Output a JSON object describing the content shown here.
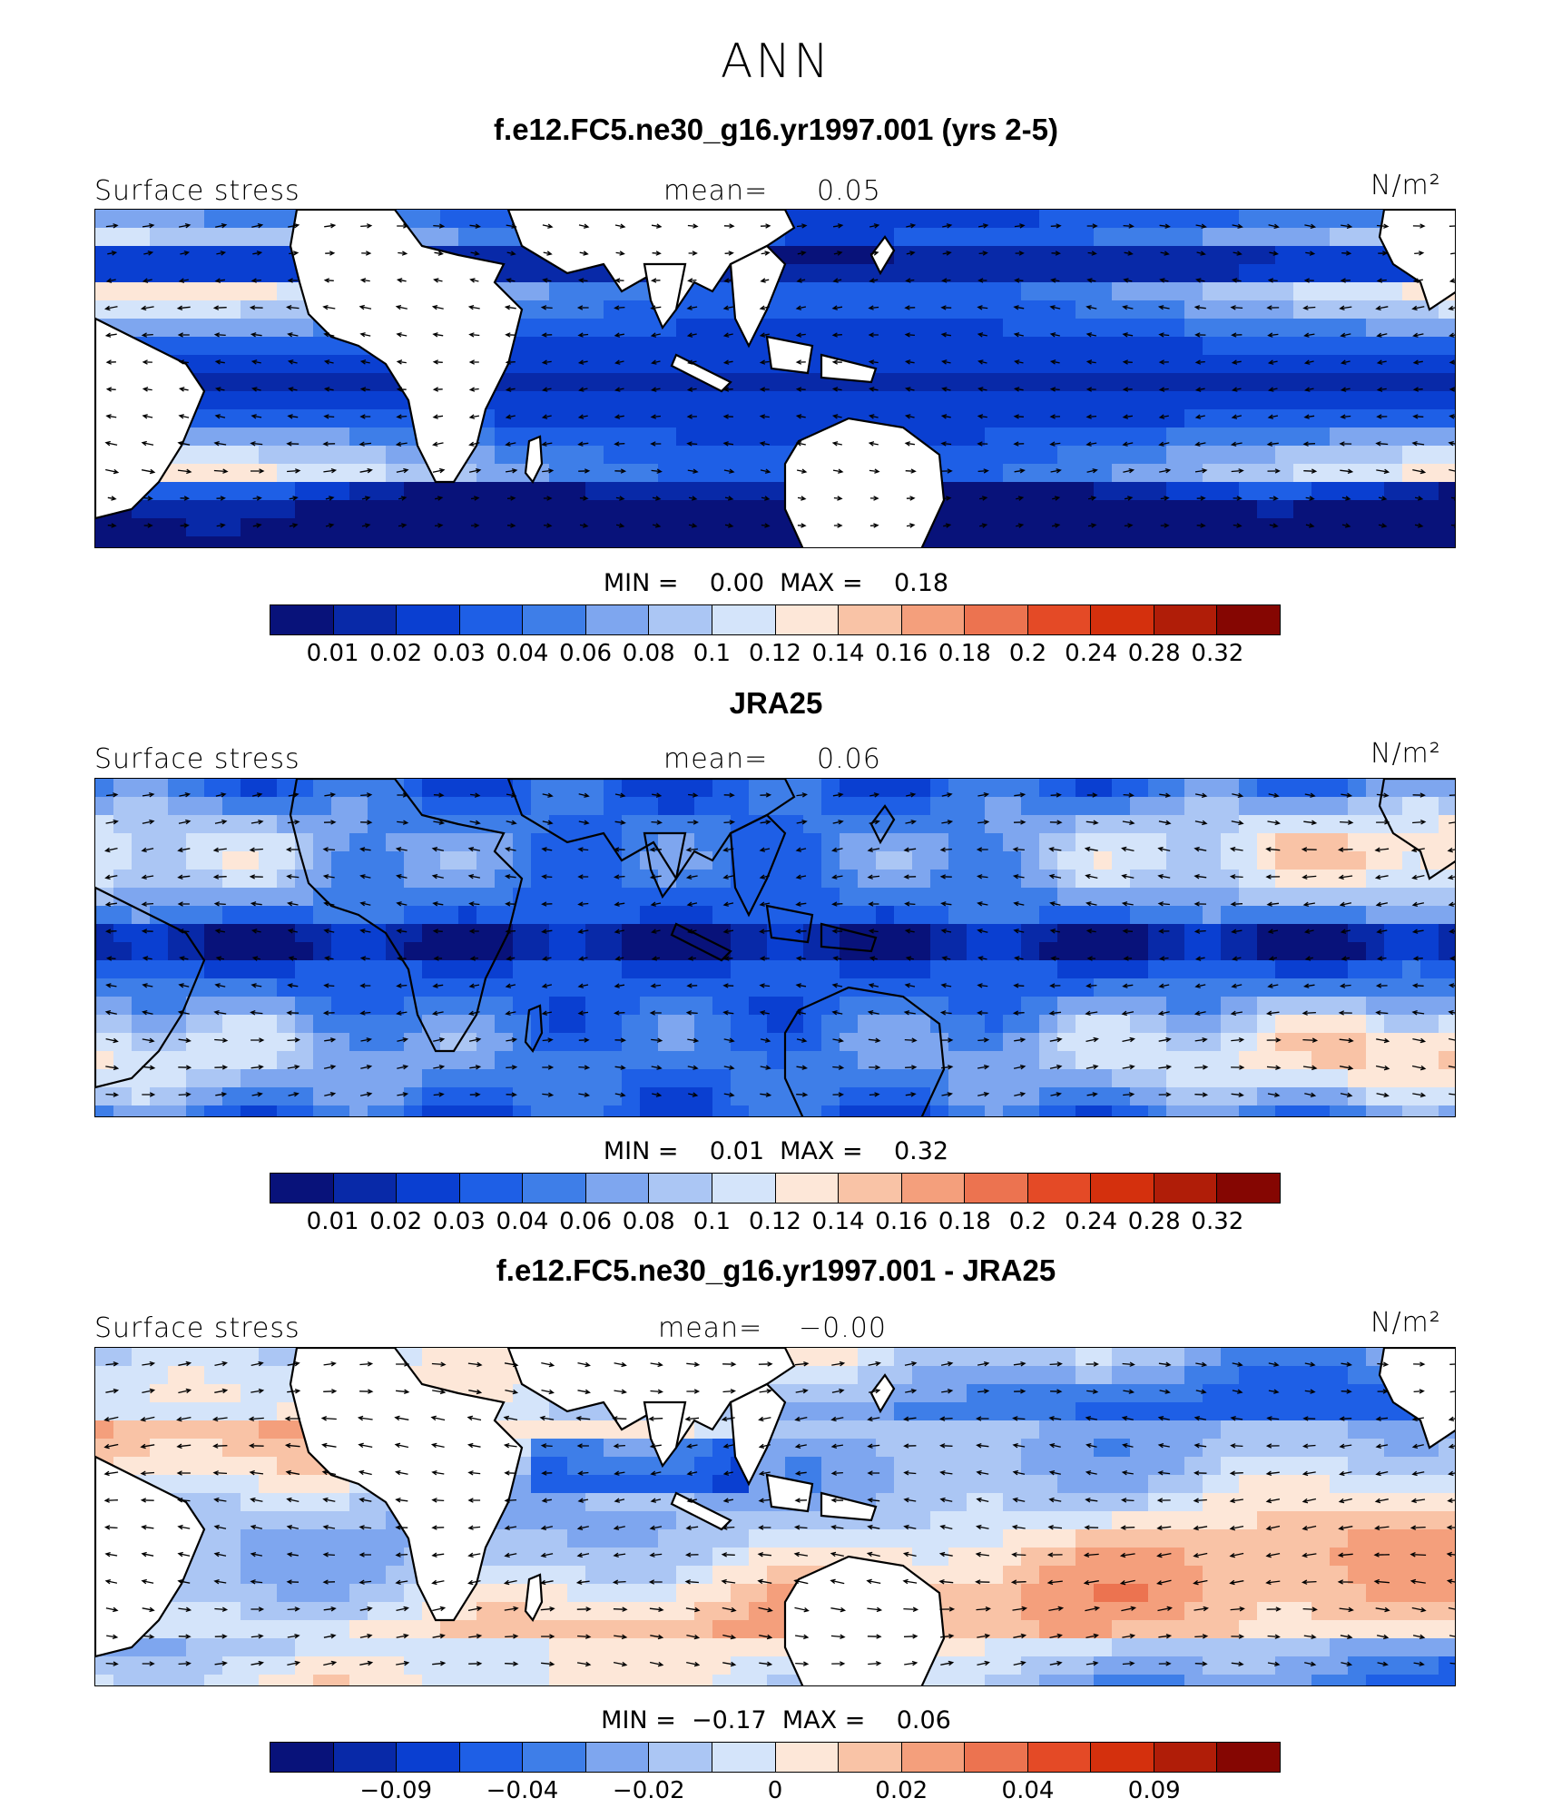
{
  "suptitle": "ANN",
  "units_label": "N/m²",
  "palette_seq": [
    "#08127a",
    "#0829a8",
    "#0a3fd1",
    "#1e5fe6",
    "#3e7ee8",
    "#7ea6ef",
    "#abc6f4",
    "#d4e4fa",
    "#fde7d8",
    "#f9c3a6",
    "#f49f7c",
    "#ec7350",
    "#e44a26",
    "#d4300d",
    "#b01d08",
    "#850602"
  ],
  "land_color": "#ffffff",
  "panels": [
    {
      "title": "f.e12.FC5.ne30_g16.yr1997.001 (yrs 2-5)",
      "field_label": "Surface stress",
      "mean_label": "mean=",
      "mean_value": "0.05",
      "units": "N/m²",
      "minmax_text": "MIN =    0.00  MAX =    0.18",
      "kind": "model",
      "colorbar_ticks": [
        "0.01",
        "0.02",
        "0.03",
        "0.04",
        "0.06",
        "0.08",
        "0.1",
        "0.12",
        "0.14",
        "0.16",
        "0.18",
        "0.2",
        "0.24",
        "0.28",
        "0.32"
      ]
    },
    {
      "title": "JRA25",
      "field_label": "Surface stress",
      "mean_label": "mean=",
      "mean_value": "0.06",
      "units": "N/m²",
      "minmax_text": "MIN =    0.01  MAX =    0.32",
      "kind": "obs",
      "colorbar_ticks": [
        "0.01",
        "0.02",
        "0.03",
        "0.04",
        "0.06",
        "0.08",
        "0.1",
        "0.12",
        "0.14",
        "0.16",
        "0.18",
        "0.2",
        "0.24",
        "0.28",
        "0.32"
      ]
    },
    {
      "title": "f.e12.FC5.ne30_g16.yr1997.001 - JRA25",
      "field_label": "Surface stress",
      "mean_label": "mean=",
      "mean_value": "−0.00",
      "units": "N/m²",
      "minmax_text": "MIN =  −0.17  MAX =    0.06",
      "kind": "diff",
      "colorbar_ticks": [
        "−0.09",
        "−0.04",
        "−0.02",
        "0",
        "0.02",
        "0.04",
        "0.09"
      ]
    }
  ]
}
